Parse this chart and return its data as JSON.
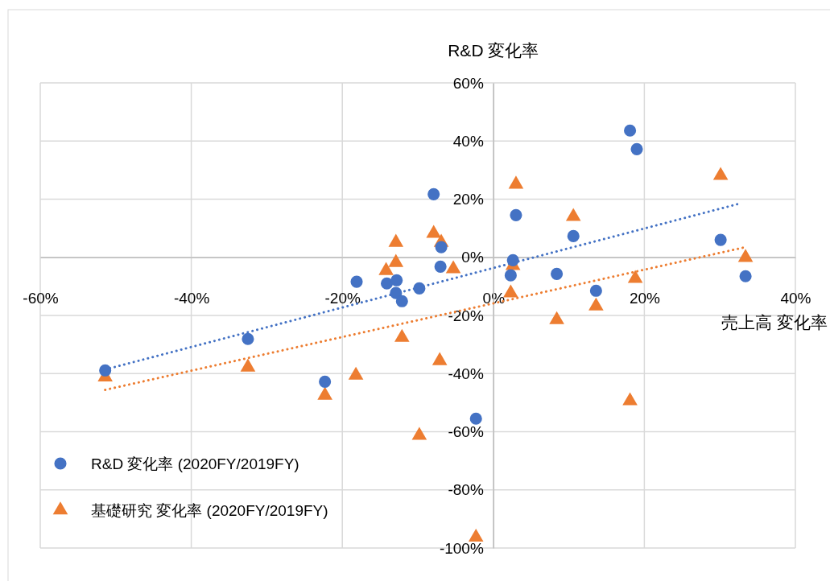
{
  "chart_data": {
    "type": "scatter",
    "ylabel": "R&D 変化率",
    "xlabel": "売上高 変化率",
    "xlim": [
      -60,
      40
    ],
    "ylim": [
      -100,
      60
    ],
    "xticks": [
      {
        "value": -60,
        "label": "-60%"
      },
      {
        "value": -40,
        "label": "-40%"
      },
      {
        "value": -20,
        "label": "-20%"
      },
      {
        "value": 0,
        "label": "0%"
      },
      {
        "value": 20,
        "label": "20%"
      },
      {
        "value": 40,
        "label": "40%"
      }
    ],
    "yticks": [
      {
        "value": -100,
        "label": "-100%"
      },
      {
        "value": -80,
        "label": "-80%"
      },
      {
        "value": -60,
        "label": "-60%"
      },
      {
        "value": -40,
        "label": "-40%"
      },
      {
        "value": -20,
        "label": "-20%"
      },
      {
        "value": 0,
        "label": "0%"
      },
      {
        "value": 20,
        "label": "20%"
      },
      {
        "value": 40,
        "label": "40%"
      },
      {
        "value": 60,
        "label": "60%"
      }
    ],
    "grid": true,
    "legend": "bottom left",
    "series": [
      {
        "name": "R&D 変化率 (2020FY/2019FY)",
        "color": "#4472c4",
        "marker": "circle",
        "x": [
          -51.4,
          -32.5,
          -22.3,
          -18.1,
          -14.1,
          -12.8,
          -12.9,
          -12.1,
          -9.8,
          -7.9,
          -6.9,
          -7.0,
          -2.3,
          2.3,
          2.6,
          3.0,
          8.4,
          10.6,
          13.6,
          18.1,
          19.0,
          30.1,
          33.4
        ],
        "values": [
          -38.9,
          -28.1,
          -42.8,
          -8.4,
          -9.0,
          -7.9,
          -12.3,
          -15.1,
          -10.7,
          21.7,
          3.5,
          -3.2,
          -55.5,
          -6.2,
          -1.0,
          14.5,
          -5.7,
          7.3,
          -11.5,
          43.6,
          37.2,
          6.0,
          -6.5
        ]
      },
      {
        "name": "基礎研究 変化率 (2020FY/2019FY)",
        "color": "#ed7d31",
        "marker": "triangle",
        "x": [
          -51.4,
          -32.5,
          -22.3,
          -18.2,
          -14.2,
          -12.9,
          -12.9,
          -12.1,
          -9.8,
          -7.9,
          -6.9,
          -7.1,
          -5.3,
          -2.3,
          2.3,
          2.6,
          3.0,
          8.4,
          10.6,
          13.6,
          18.1,
          18.8,
          30.1,
          33.4
        ],
        "values": [
          -41.2,
          -37.8,
          -47.5,
          -40.6,
          -4.6,
          5.1,
          -1.8,
          -27.6,
          -61.3,
          8.2,
          5.1,
          -35.6,
          -4.0,
          -96.3,
          -12.3,
          -2.9,
          25.1,
          -21.5,
          14.0,
          -16.8,
          -49.4,
          -7.3,
          28.1,
          -0.1
        ]
      },
      {
        "type": "line",
        "color": "#4472c4",
        "line_style": "dotted",
        "marker": "none",
        "x": [
          -51.4,
          32.8
        ],
        "values": [
          -38.6,
          18.6
        ]
      },
      {
        "type": "line",
        "color": "#ed7d31",
        "line_style": "dotted",
        "marker": "none",
        "x": [
          -51.4,
          33.4
        ],
        "values": [
          -45.6,
          3.5
        ]
      }
    ]
  }
}
